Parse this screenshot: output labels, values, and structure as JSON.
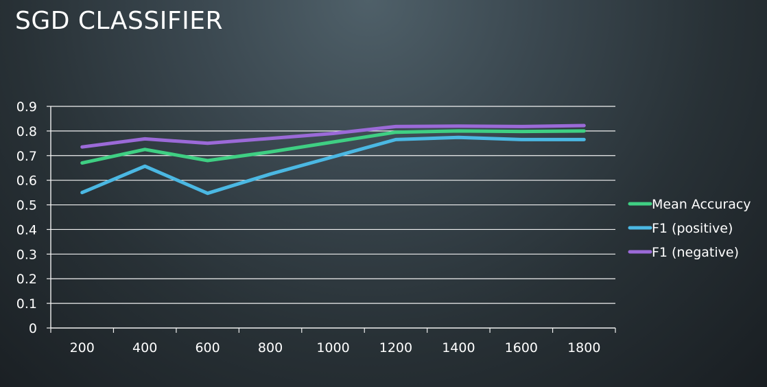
{
  "slide": {
    "title": "SGD CLASSIFIER"
  },
  "colors": {
    "grid": "#f2f2f2",
    "axis": "#f2f2f2",
    "text": "#ffffff"
  },
  "chart_data": {
    "type": "line",
    "title": "",
    "xlabel": "",
    "ylabel": "",
    "categories": [
      "200",
      "400",
      "600",
      "800",
      "1000",
      "1200",
      "1400",
      "1600",
      "1800"
    ],
    "y_ticks": [
      "0",
      "0.1",
      "0.2",
      "0.3",
      "0.4",
      "0.5",
      "0.6",
      "0.7",
      "0.8",
      "0.9"
    ],
    "ylim": [
      0,
      0.9
    ],
    "grid": true,
    "legend_position": "right",
    "series": [
      {
        "name": "Mean Accuracy",
        "color": "#3fcf83",
        "values": [
          0.67,
          0.725,
          0.68,
          0.715,
          0.755,
          0.795,
          0.8,
          0.798,
          0.8
        ]
      },
      {
        "name": "F1 (positive)",
        "color": "#4bb8e3",
        "values": [
          0.55,
          0.657,
          0.547,
          0.625,
          0.695,
          0.765,
          0.774,
          0.765,
          0.765
        ]
      },
      {
        "name": "F1 (negative)",
        "color": "#9b6ad8",
        "values": [
          0.735,
          0.768,
          0.75,
          0.77,
          0.79,
          0.818,
          0.82,
          0.818,
          0.822
        ]
      }
    ]
  }
}
